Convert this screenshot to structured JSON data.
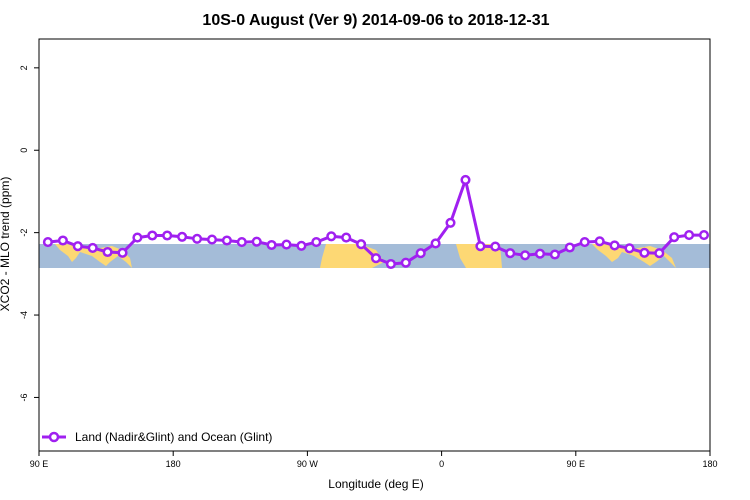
{
  "chart_data": {
    "type": "line",
    "title": "10S-0 August (Ver 9)   2014-09-06 to 2018-12-31",
    "xlabel": "Longitude (deg E)",
    "ylabel": "XCO2 - MLO trend (ppm)",
    "x_ticks": [
      {
        "value": 90,
        "label": "90 E"
      },
      {
        "value": 180,
        "label": "180"
      },
      {
        "value": 270,
        "label": "90 W"
      },
      {
        "value": 360,
        "label": "0"
      },
      {
        "value": 450,
        "label": "90 E"
      },
      {
        "value": 540,
        "label": "180"
      }
    ],
    "y_ticks": [
      2,
      0,
      -2,
      -4,
      -6
    ],
    "xlim": [
      90,
      540
    ],
    "ylim": [
      -7.3,
      2.7
    ],
    "grid": false,
    "legend_position": "bottom-left",
    "line_color": "#a020f0",
    "ocean_color": "#a4bcd8",
    "land_color": "#fdd874",
    "series": [
      {
        "name": "Land (Nadir&Glint) and Ocean (Glint)",
        "x": [
          96,
          106,
          116,
          126,
          136,
          146,
          156,
          166,
          176,
          186,
          196,
          206,
          216,
          226,
          236,
          246,
          256,
          266,
          276,
          286,
          296,
          306,
          316,
          326,
          336,
          346,
          356,
          366,
          376,
          386,
          396,
          406,
          416,
          426,
          436,
          446,
          456,
          466,
          476,
          486,
          496,
          506,
          516,
          526,
          536
        ],
        "y": [
          -2.23,
          -2.19,
          -2.33,
          -2.37,
          -2.47,
          -2.49,
          -2.12,
          -2.07,
          -2.07,
          -2.1,
          -2.15,
          -2.17,
          -2.19,
          -2.23,
          -2.22,
          -2.3,
          -2.29,
          -2.32,
          -2.23,
          -2.09,
          -2.12,
          -2.28,
          -2.62,
          -2.76,
          -2.73,
          -2.5,
          -2.26,
          -1.76,
          -0.72,
          -2.33,
          -2.34,
          -2.5,
          -2.55,
          -2.51,
          -2.53,
          -2.36,
          -2.23,
          -2.21,
          -2.31,
          -2.38,
          -2.49,
          -2.5,
          -2.11,
          -2.06,
          -2.06
        ]
      }
    ]
  }
}
